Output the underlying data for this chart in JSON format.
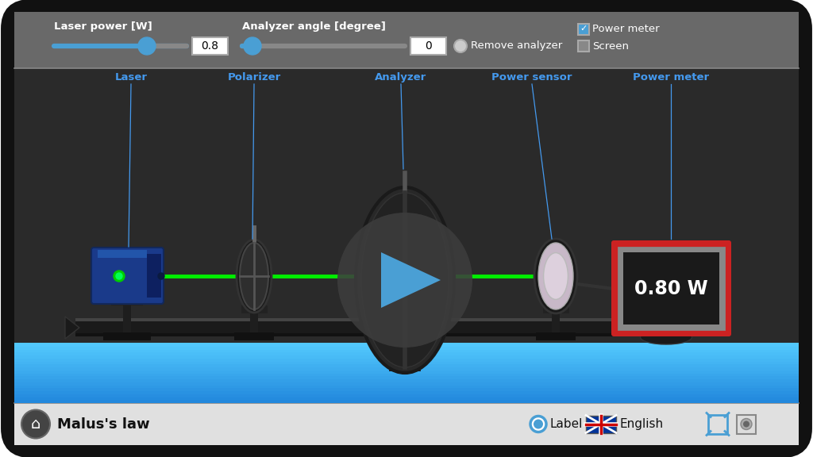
{
  "title": "Malus's law",
  "laser_power_label": "Laser power [W]",
  "laser_power_value": "0.8",
  "analyzer_angle_label": "Analyzer angle [degree]",
  "analyzer_angle_value": "0",
  "remove_analyzer_label": "Remove analyzer",
  "power_meter_label": "Power meter",
  "screen_label": "Screen",
  "laser_label": "Laser",
  "polarizer_label": "Polarizer",
  "analyzer_label": "Analyzer",
  "power_sensor_label": "Power sensor",
  "power_meter_display_label": "Power meter",
  "power_display_value": "0.80 W",
  "label_text": "Label",
  "english_text": "English",
  "bg_white": "#ffffff",
  "bg_dark": "#2a2a2a",
  "bg_controls": "#696969",
  "bg_nav": "#e0e0e0",
  "slider_blue": "#4a9fd4",
  "label_blue": "#4499ee",
  "beam_green": "#00ee00",
  "laser_blue_dark": "#1a3a7a",
  "laser_blue_mid": "#1e4494",
  "floor_blue_top": "#55bbff",
  "floor_blue_bot": "#0077cc",
  "rail_dark": "#1a1a1a",
  "rail_mid": "#333333",
  "power_meter_red": "#cc2222",
  "power_meter_screen": "#1a1a1a",
  "play_bg": "#3d3d3d",
  "play_arrow": "#4a9fd4"
}
